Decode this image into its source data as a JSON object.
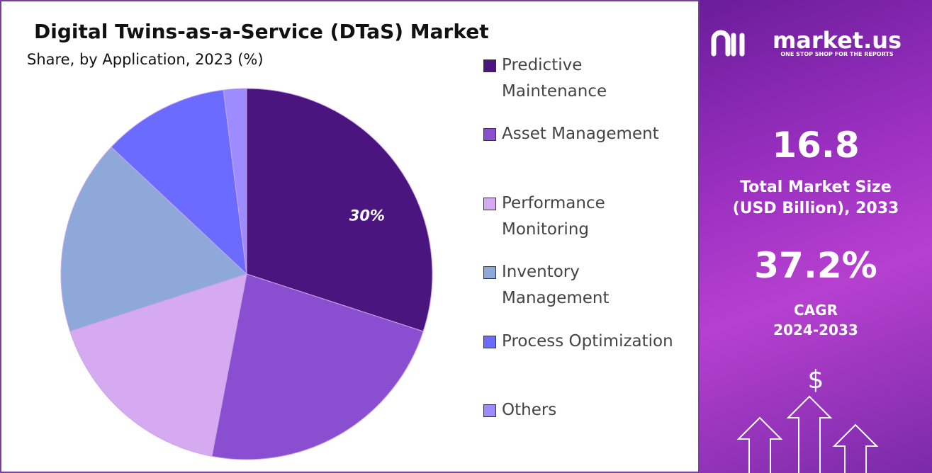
{
  "chart_data": {
    "type": "pie",
    "title": "Digital Twins-as-a-Service (DTaS) Market",
    "subtitle": "Share, by Application, 2023 (%)",
    "categories": [
      "Predictive Maintenance",
      "Asset Management",
      "Performance Monitoring",
      "Inventory Management",
      "Process Optimization",
      "Others"
    ],
    "values": [
      30,
      23,
      17,
      17,
      11,
      2
    ],
    "value_labels": [
      "30%",
      null,
      null,
      null,
      null,
      null
    ],
    "colors": [
      "#4b1580",
      "#8a4fd0",
      "#d6aaf0",
      "#8fa8da",
      "#6b6bff",
      "#9d8cff"
    ]
  },
  "panel": {
    "brand": "market.us",
    "tagline": "ONE STOP SHOP FOR THE REPORTS",
    "market_size": "16.8",
    "market_size_label": "Total Market Size (USD Billion), 2033",
    "cagr": "37.2%",
    "cagr_label": "CAGR 2024-2033",
    "currency_icon": "$"
  }
}
